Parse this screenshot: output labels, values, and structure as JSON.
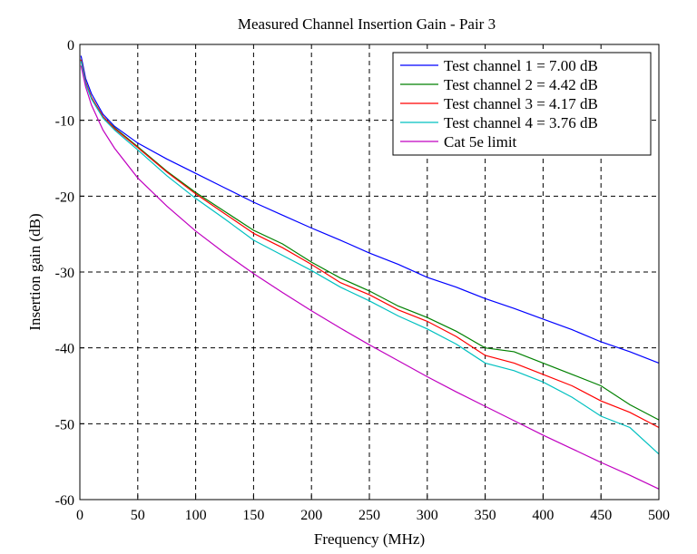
{
  "chart_data": {
    "type": "line",
    "title": "Measured Channel Insertion Gain - Pair 3",
    "xlabel": "Frequency (MHz)",
    "ylabel": "Insertion gain (dB)",
    "xlim": [
      0,
      500
    ],
    "ylim": [
      -60,
      0
    ],
    "xticks": [
      "0",
      "50",
      "100",
      "150",
      "200",
      "250",
      "300",
      "350",
      "400",
      "450",
      "500"
    ],
    "yticks": [
      "0",
      "-10",
      "-20",
      "-30",
      "-40",
      "-50",
      "-60"
    ],
    "grid": true,
    "legend_position": "top-right",
    "series": [
      {
        "name": "Test channel 1 = 7.00 dB",
        "color": "#0000ff",
        "x": [
          1,
          5,
          10,
          20,
          30,
          50,
          75,
          100,
          125,
          150,
          175,
          200,
          225,
          250,
          275,
          300,
          325,
          350,
          375,
          400,
          425,
          450,
          475,
          500
        ],
        "y": [
          -1.5,
          -4.5,
          -6.5,
          -9.2,
          -10.8,
          -13.0,
          -15.1,
          -17.0,
          -18.9,
          -20.8,
          -22.5,
          -24.2,
          -25.8,
          -27.5,
          -29.0,
          -30.7,
          -32.0,
          -33.5,
          -34.8,
          -36.2,
          -37.6,
          -39.2,
          -40.5,
          -42.0
        ]
      },
      {
        "name": "Test channel 2 = 4.42 dB",
        "color": "#008000",
        "x": [
          1,
          5,
          10,
          20,
          30,
          50,
          75,
          100,
          125,
          150,
          175,
          200,
          225,
          250,
          275,
          300,
          325,
          350,
          375,
          400,
          425,
          450,
          475,
          500
        ],
        "y": [
          -2.0,
          -5.0,
          -7.0,
          -9.5,
          -11.0,
          -13.5,
          -16.7,
          -19.5,
          -22.0,
          -24.5,
          -26.3,
          -28.7,
          -30.8,
          -32.5,
          -34.5,
          -36.0,
          -37.8,
          -40.0,
          -40.5,
          -42.0,
          -43.5,
          -45.0,
          -47.5,
          -49.5
        ]
      },
      {
        "name": "Test channel 3 = 4.17 dB",
        "color": "#ff0000",
        "x": [
          1,
          5,
          10,
          20,
          30,
          50,
          75,
          100,
          125,
          150,
          175,
          200,
          225,
          250,
          275,
          300,
          325,
          350,
          375,
          400,
          425,
          450,
          475,
          500
        ],
        "y": [
          -2.0,
          -5.0,
          -7.0,
          -9.5,
          -11.1,
          -13.6,
          -16.8,
          -19.7,
          -22.3,
          -24.9,
          -26.8,
          -29.0,
          -31.4,
          -33.0,
          -35.0,
          -36.5,
          -38.5,
          -41.0,
          -42.0,
          -43.5,
          -45.0,
          -47.0,
          -48.5,
          -50.5
        ]
      },
      {
        "name": "Test channel 4 = 3.76 dB",
        "color": "#00c0c0",
        "x": [
          1,
          5,
          10,
          20,
          30,
          50,
          75,
          100,
          125,
          150,
          175,
          200,
          225,
          250,
          275,
          300,
          325,
          350,
          375,
          400,
          425,
          450,
          475,
          500
        ],
        "y": [
          -2.2,
          -5.2,
          -7.2,
          -9.7,
          -11.3,
          -13.9,
          -17.3,
          -20.3,
          -23.0,
          -25.8,
          -27.8,
          -29.8,
          -32.0,
          -33.8,
          -35.8,
          -37.5,
          -39.5,
          -42.0,
          -43.0,
          -44.5,
          -46.5,
          -49.0,
          -50.5,
          -54.0
        ]
      },
      {
        "name": "Cat 5e limit",
        "color": "#c000c0",
        "x": [
          1,
          5,
          10,
          20,
          30,
          50,
          75,
          100,
          125,
          150,
          175,
          200,
          225,
          250,
          275,
          300,
          325,
          350,
          375,
          400,
          425,
          450,
          475,
          500
        ],
        "y": [
          -2.8,
          -5.6,
          -8.0,
          -11.3,
          -13.7,
          -17.6,
          -21.3,
          -24.6,
          -27.5,
          -30.2,
          -32.7,
          -35.1,
          -37.4,
          -39.6,
          -41.7,
          -43.8,
          -45.8,
          -47.7,
          -49.6,
          -51.5,
          -53.3,
          -55.1,
          -56.8,
          -58.6
        ]
      }
    ]
  }
}
